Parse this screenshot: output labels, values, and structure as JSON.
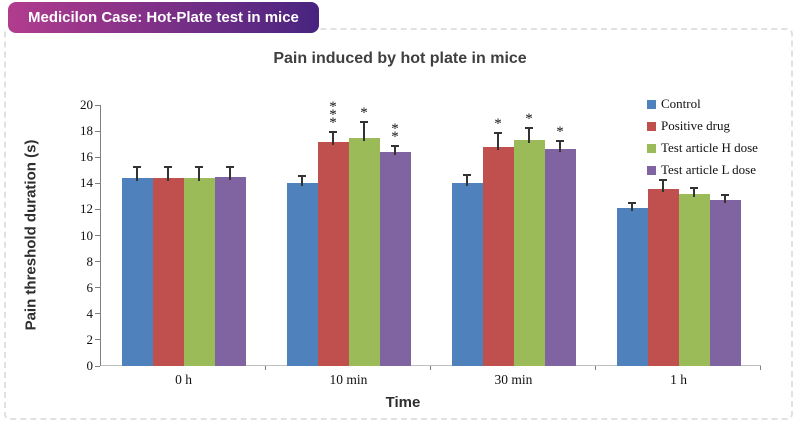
{
  "header": {
    "badge_label": "Medicilon Case: Hot-Plate test in mice",
    "badge_gradient": [
      "#b23c8e",
      "#472480"
    ]
  },
  "chart_data": {
    "type": "bar",
    "title": "Pain induced by hot plate in mice",
    "xlabel": "Time",
    "ylabel": "Pain threshold duration (s)",
    "ylim": [
      0,
      20
    ],
    "ytick_step": 2,
    "grid": false,
    "legend_position": "top-right",
    "error_bars": "plus-direction",
    "categories": [
      "0 h",
      "10 min",
      "30 min",
      "1 h"
    ],
    "series": [
      {
        "name": "Control",
        "color": "#4f81bd",
        "values": [
          14.4,
          14.0,
          14.0,
          12.1
        ],
        "errors": [
          0.9,
          0.6,
          0.7,
          0.5
        ],
        "significance": [
          "",
          "",
          "",
          ""
        ]
      },
      {
        "name": "Positive drug",
        "color": "#c0504d",
        "values": [
          14.4,
          17.2,
          16.8,
          13.6
        ],
        "errors": [
          0.9,
          0.8,
          1.1,
          0.7
        ],
        "significance": [
          "",
          "***",
          "*",
          ""
        ]
      },
      {
        "name": "Test article H dose",
        "color": "#9bbb59",
        "values": [
          14.4,
          17.5,
          17.3,
          13.2
        ],
        "errors": [
          0.9,
          1.3,
          1.0,
          0.5
        ],
        "significance": [
          "",
          "*",
          "*",
          ""
        ]
      },
      {
        "name": "Test article L dose",
        "color": "#8064a2",
        "values": [
          14.5,
          16.4,
          16.6,
          12.7
        ],
        "errors": [
          0.8,
          0.5,
          0.7,
          0.5
        ],
        "significance": [
          "",
          "**",
          "*",
          ""
        ]
      }
    ]
  }
}
